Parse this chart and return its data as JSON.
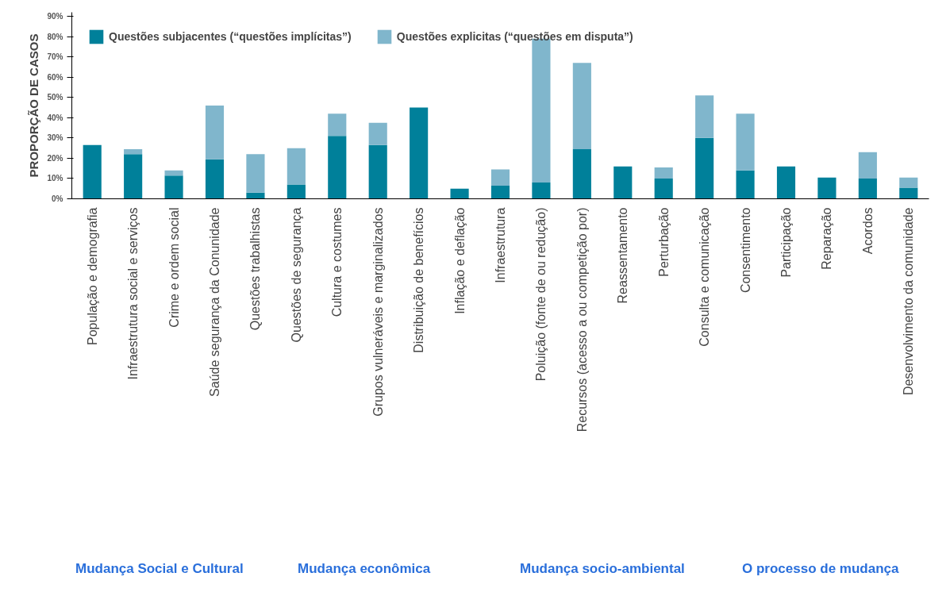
{
  "chart_data": {
    "type": "bar",
    "stacked": true,
    "ylabel": "PROPORÇÃO DE CASOS",
    "categories": [
      "População e demografia",
      "Infraestrutura social e serviços",
      "Crime e ordem social",
      "Saúde segurança da Conunidade",
      "Questões trabalhistas",
      "Questões de segurança",
      "Cultura e costumes",
      "Grupos vulneráveis e marginalizados",
      "Distribuição de benefícios",
      "Inflação e deflação",
      "Infraestrutura",
      "Poluição (fonte de ou redução)",
      "Recursos (acesso a ou competição por)",
      "Reassentamento",
      "Perturbação",
      "Consulta e comunicação",
      "Consentimento",
      "Participação",
      "Reparação",
      "Acordos",
      "Desenvolvimento da comunidade"
    ],
    "series": [
      {
        "name": "Questões subjacentes (“questões implícitas”)",
        "color": "#00809a",
        "values": [
          26.5,
          22,
          11.5,
          19.5,
          3,
          7,
          31,
          26.5,
          45,
          5,
          6.5,
          8,
          24.5,
          16,
          10,
          30,
          14,
          16,
          10.5,
          10,
          5.5
        ]
      },
      {
        "name": "Questões explicitas (“questões em disputa”)",
        "color": "#80b6cc",
        "values": [
          0,
          2.5,
          2.5,
          26.5,
          19,
          18,
          11,
          11,
          0,
          0,
          8,
          71,
          42.5,
          0,
          5.5,
          21,
          28,
          0,
          0,
          13,
          5
        ]
      }
    ],
    "ylim": [
      0,
      92
    ],
    "yticks": [
      {
        "value": 0,
        "label": "0%"
      },
      {
        "value": 10,
        "label": "10%"
      },
      {
        "value": 20,
        "label": "20%"
      },
      {
        "value": 30,
        "label": "30%"
      },
      {
        "value": 40,
        "label": "40%"
      },
      {
        "value": 50,
        "label": "50%"
      },
      {
        "value": 60,
        "label": "60%"
      },
      {
        "value": 70,
        "label": "70%"
      },
      {
        "value": 80,
        "label": "80%"
      },
      {
        "value": 90,
        "label": "90%"
      }
    ],
    "grid": false,
    "legend": "top left",
    "annotations": [
      "Mudança Social e Cultural",
      "Mudança econômica",
      "Mudança socio-ambiental",
      "O processo de mudança"
    ]
  }
}
